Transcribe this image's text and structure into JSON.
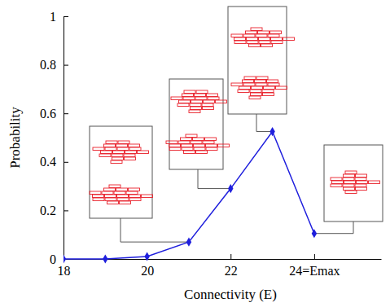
{
  "chart_data": {
    "type": "line",
    "x_label": "Connectivity (E)",
    "y_label": "Probability",
    "x": [
      18,
      19,
      20,
      21,
      22,
      23,
      24
    ],
    "values": [
      0,
      0,
      0.01,
      0.07,
      0.29,
      0.525,
      0.105
    ],
    "color": "#1f1fdd",
    "marker": "diamond",
    "xlim": [
      18,
      25.6
    ],
    "ylim": [
      0,
      1
    ],
    "xticks": [
      18,
      20,
      22,
      {
        "value": 24,
        "label": "24=Emax"
      }
    ],
    "yticks": [
      0,
      0.2,
      0.4,
      0.6,
      0.8,
      1
    ]
  }
}
